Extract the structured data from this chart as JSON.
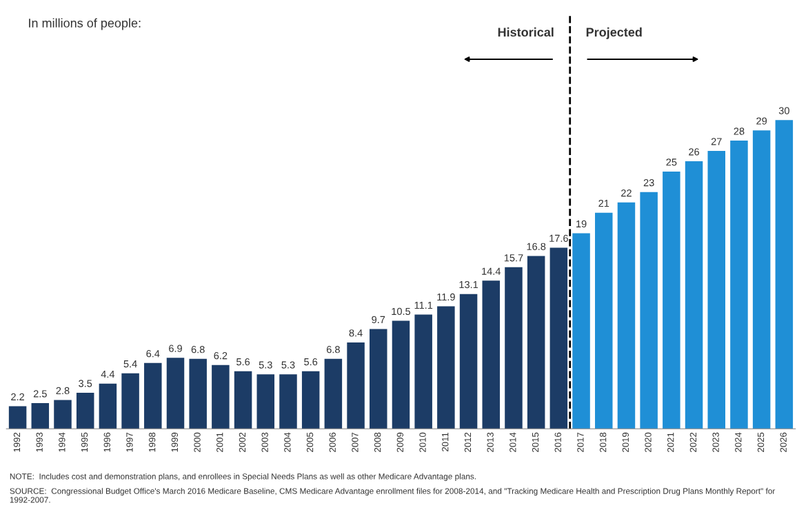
{
  "chart_data": {
    "type": "bar",
    "subtitle": "In millions of people:",
    "categories": [
      "1992",
      "1993",
      "1994",
      "1995",
      "1996",
      "1997",
      "1998",
      "1999",
      "2000",
      "2001",
      "2002",
      "2003",
      "2004",
      "2005",
      "2006",
      "2007",
      "2008",
      "2009",
      "2010",
      "2011",
      "2012",
      "2013",
      "2014",
      "2015",
      "2016",
      "2017",
      "2018",
      "2019",
      "2020",
      "2021",
      "2022",
      "2023",
      "2024",
      "2025",
      "2026"
    ],
    "values": [
      2.2,
      2.5,
      2.8,
      3.5,
      4.4,
      5.4,
      6.4,
      6.9,
      6.8,
      6.2,
      5.6,
      5.3,
      5.3,
      5.6,
      6.8,
      8.4,
      9.7,
      10.5,
      11.1,
      11.9,
      13.1,
      14.4,
      15.7,
      16.8,
      17.6,
      19,
      21,
      22,
      23,
      25,
      26,
      27,
      28,
      29,
      30
    ],
    "colors": [
      "#1c3c66",
      "#1c3c66",
      "#1c3c66",
      "#1c3c66",
      "#1c3c66",
      "#1c3c66",
      "#1c3c66",
      "#1c3c66",
      "#1c3c66",
      "#1c3c66",
      "#1c3c66",
      "#1c3c66",
      "#1c3c66",
      "#1c3c66",
      "#1c3c66",
      "#1c3c66",
      "#1c3c66",
      "#1c3c66",
      "#1c3c66",
      "#1c3c66",
      "#1c3c66",
      "#1c3c66",
      "#1c3c66",
      "#1c3c66",
      "#1c3c66",
      "#1f8fd6",
      "#1f8fd6",
      "#1f8fd6",
      "#1f8fd6",
      "#1f8fd6",
      "#1f8fd6",
      "#1f8fd6",
      "#1f8fd6",
      "#1f8fd6",
      "#1f8fd6"
    ],
    "data_labels": true,
    "grid": false,
    "tick_labels": "x",
    "annotations": [
      "Historical",
      "Projected",
      "NOTE:  Includes cost and demonstration plans, and enrollees in Special Needs Plans as well as other Medicare Advantage plans.",
      "SOURCE:  Congressional Budget Office's March 2016 Medicare Baseline, CMS Medicare Advantage enrollment files for 2008-2014, and \"Tracking Medicare Health and Prescription Drug Plans Monthly Report\" for 1992-2007."
    ]
  }
}
